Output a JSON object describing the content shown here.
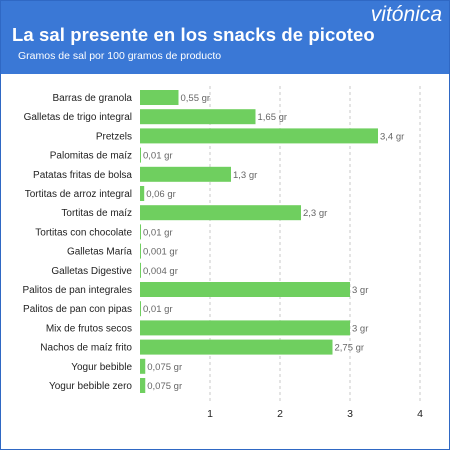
{
  "header": {
    "title": "La sal presente en los snacks de picoteo",
    "subtitle": "Gramos de sal por 100 gramos de producto",
    "brand": "vitónica"
  },
  "colors": {
    "header_bg": "#3a78d6",
    "bar": "#6fcf5f",
    "grid": "#c9c9c9",
    "label": "#222222",
    "value_label": "#666666"
  },
  "chart_data": {
    "type": "bar",
    "orientation": "horizontal",
    "title": "La sal presente en los snacks de picoteo",
    "subtitle": "Gramos de sal por 100 gramos de producto",
    "xlabel": "",
    "ylabel": "",
    "xlim": [
      0,
      4
    ],
    "x_ticks": [
      "1",
      "2",
      "3",
      "4"
    ],
    "grid": "vertical dashed",
    "categories": [
      "Barras de granola",
      "Galletas de trigo integral",
      "Pretzels",
      "Palomitas de maíz",
      "Patatas fritas de bolsa",
      "Tortitas de arroz integral",
      "Tortitas de maíz",
      "Tortitas con chocolate",
      "Galletas María",
      "Galletas Digestive",
      "Palitos de pan integrales",
      "Palitos de pan con pipas",
      "Mix de frutos secos",
      "Nachos de maíz frito",
      "Yogur bebible",
      "Yogur bebible zero"
    ],
    "values": [
      0.55,
      1.65,
      3.4,
      0.01,
      1.3,
      0.06,
      2.3,
      0.01,
      0.001,
      0.004,
      3,
      0.01,
      3,
      2.75,
      0.075,
      0.075
    ],
    "value_labels": [
      "0,55 gr",
      "1,65 gr",
      "3,4 gr",
      "0,01 gr",
      "1,3 gr",
      "0,06 gr",
      "2,3 gr",
      "0,01 gr",
      "0,001 gr",
      "0,004 gr",
      "3 gr",
      "0,01 gr",
      "3 gr",
      "2,75 gr",
      "0,075 gr",
      "0,075 gr"
    ]
  }
}
